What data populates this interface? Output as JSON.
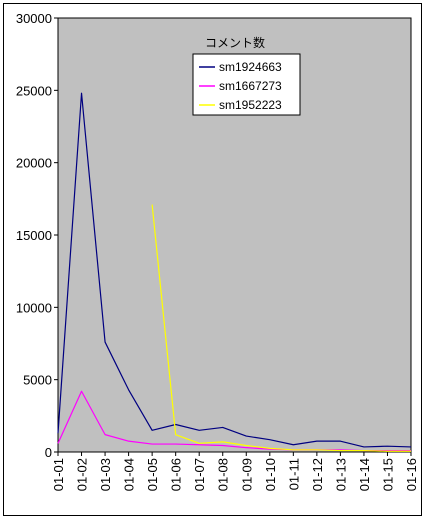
{
  "chart_data": {
    "type": "line",
    "title": "",
    "xlabel": "",
    "ylabel": "",
    "categories": [
      "01-01",
      "01-02",
      "01-03",
      "01-04",
      "01-05",
      "01-06",
      "01-07",
      "01-08",
      "01-09",
      "01-10",
      "01-11",
      "01-12",
      "01-13",
      "01-14",
      "01-15",
      "01-16"
    ],
    "ylim": [
      0,
      30000
    ],
    "yticks": [
      0,
      5000,
      10000,
      15000,
      20000,
      25000,
      30000
    ],
    "grid": false,
    "plot_background": "#c0c0c0",
    "legend": {
      "title": "コメント数",
      "position": "top-right"
    },
    "series": [
      {
        "name": "sm1924663",
        "color": "#000080",
        "values": [
          1300,
          24800,
          7600,
          4300,
          1500,
          1900,
          1500,
          1700,
          1100,
          850,
          500,
          750,
          750,
          350,
          400,
          350
        ]
      },
      {
        "name": "sm1667273",
        "color": "#ff00ff",
        "values": [
          600,
          4200,
          1200,
          750,
          550,
          550,
          500,
          450,
          300,
          200,
          150,
          150,
          150,
          100,
          100,
          100
        ]
      },
      {
        "name": "sm1952223",
        "color": "#ffff00",
        "values": [
          null,
          null,
          null,
          null,
          17100,
          1200,
          600,
          700,
          450,
          250,
          150,
          150,
          100,
          100,
          50,
          50
        ]
      }
    ]
  }
}
